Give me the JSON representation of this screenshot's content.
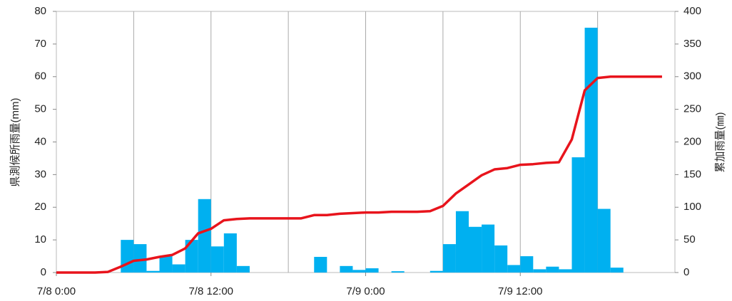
{
  "chart_data": {
    "type": "bar_line",
    "ylabel": "県測候所雨量(mm)",
    "y2label": "累加雨量(㎜)",
    "xlim": [
      0,
      48
    ],
    "xticks": [
      {
        "value": 0,
        "label": "7/8 0:00"
      },
      {
        "value": 12,
        "label": "7/8 12:00"
      },
      {
        "value": 24,
        "label": "7/9 0:00"
      },
      {
        "value": 36,
        "label": "7/9 12:00"
      }
    ],
    "xgrid": [
      6,
      12,
      18,
      24,
      30,
      36,
      42
    ],
    "ylim": [
      0,
      80
    ],
    "yticks": [
      0,
      10,
      20,
      30,
      40,
      50,
      60,
      70,
      80
    ],
    "y2lim": [
      0,
      400
    ],
    "y2ticks": [
      0,
      50,
      100,
      150,
      200,
      250,
      300,
      350,
      400
    ],
    "x": [
      0,
      1,
      2,
      3,
      4,
      5,
      6,
      7,
      8,
      9,
      10,
      11,
      12,
      13,
      14,
      15,
      16,
      17,
      18,
      19,
      20,
      21,
      22,
      23,
      24,
      25,
      26,
      27,
      28,
      29,
      30,
      31,
      32,
      33,
      34,
      35,
      36,
      37,
      38,
      39,
      40,
      41,
      42,
      43,
      44,
      45,
      46,
      47
    ],
    "series": [
      {
        "type": "bar",
        "color": "#00b0f0",
        "values": [
          0,
          0,
          0,
          0,
          0,
          10,
          8.7,
          0.5,
          5,
          2.5,
          10,
          22.5,
          8,
          12,
          2,
          0,
          0,
          0,
          0,
          0,
          4.8,
          0,
          2,
          0.8,
          1.3,
          0,
          0.4,
          0,
          0,
          0.5,
          8.7,
          18.8,
          14,
          14.7,
          8.3,
          2.3,
          5,
          1,
          1.8,
          1,
          35.3,
          75,
          19.5,
          1.5,
          0,
          0,
          0,
          0
        ]
      },
      {
        "type": "line",
        "axis": "y2",
        "color": "#e8141c",
        "values": [
          0,
          0,
          0,
          0,
          1,
          9,
          18,
          20,
          24,
          27,
          37,
          60,
          67,
          80,
          82,
          83,
          83,
          83,
          83,
          83,
          88,
          88,
          90,
          91,
          92,
          92,
          93,
          93,
          93,
          94,
          102,
          121,
          135,
          149,
          158,
          160,
          165,
          166,
          168,
          169,
          204,
          279,
          298,
          300,
          300,
          300,
          300,
          300
        ]
      }
    ]
  }
}
